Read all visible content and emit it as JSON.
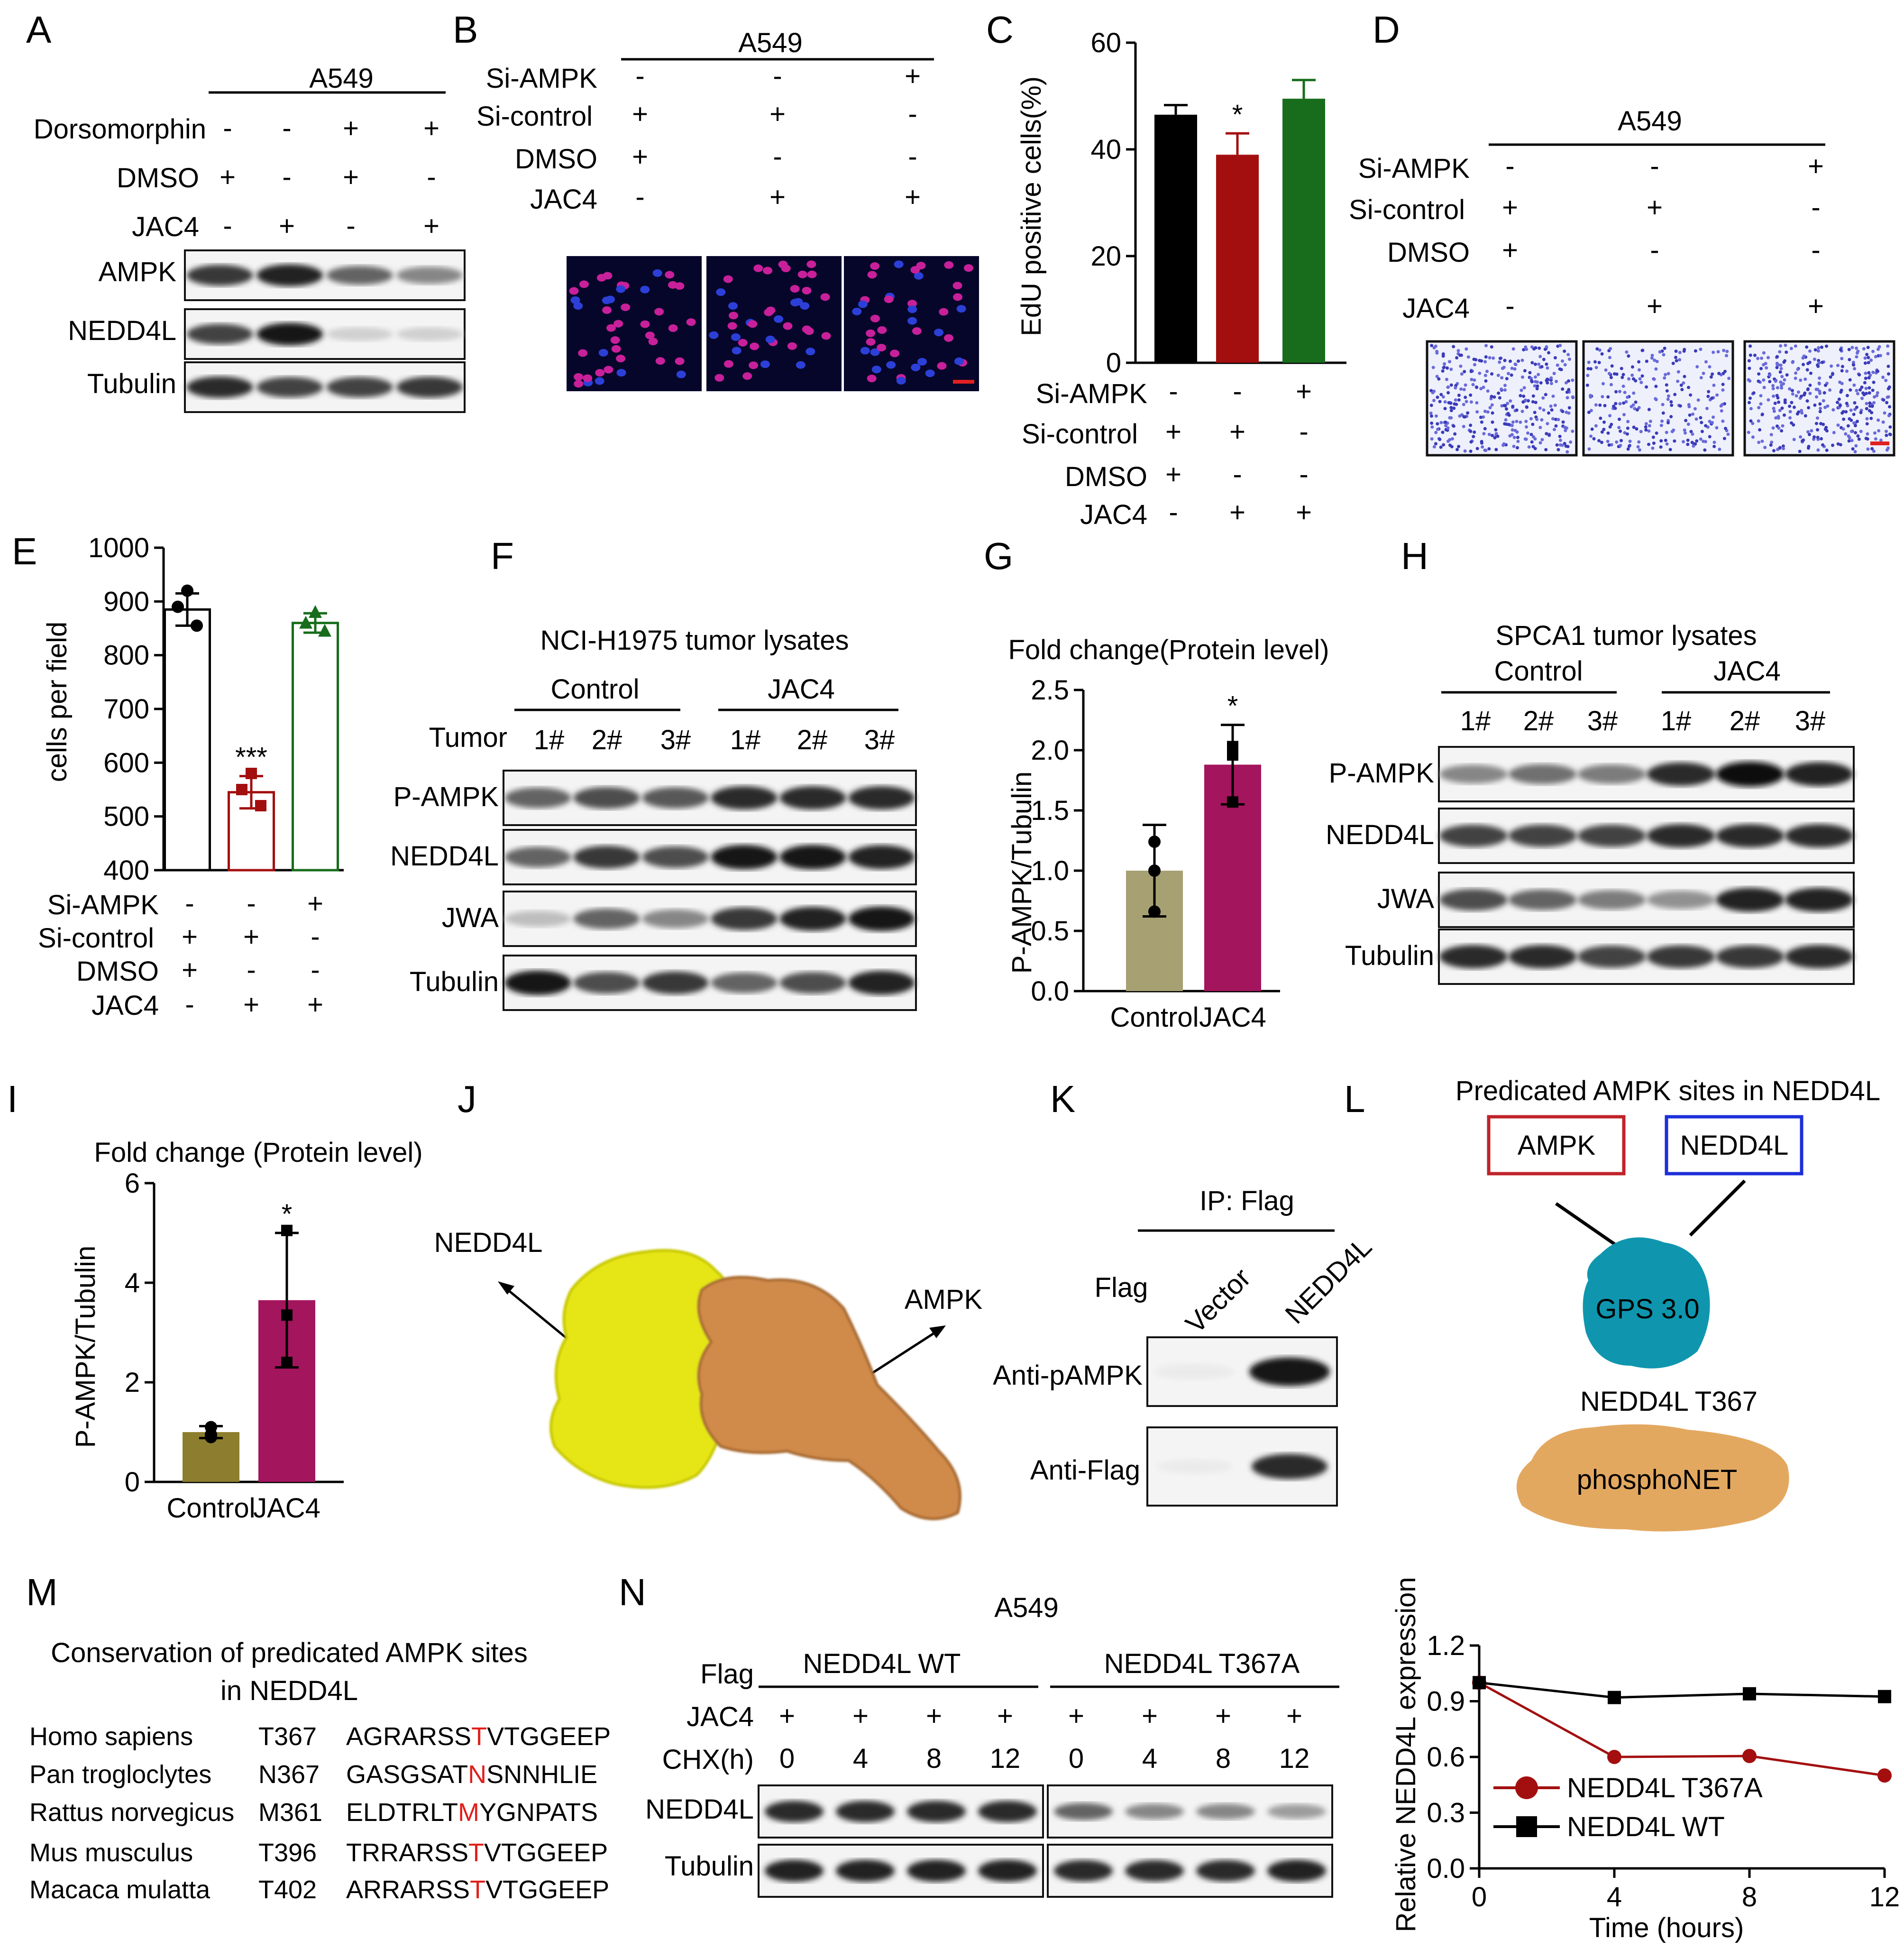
{
  "panel_letters": [
    "A",
    "B",
    "C",
    "D",
    "E",
    "F",
    "G",
    "H",
    "I",
    "J",
    "K",
    "L",
    "M",
    "N"
  ],
  "treat_labels": {
    "dorsomorphin": "Dorsomorphin",
    "dmso": "DMSO",
    "jac4": "JAC4",
    "si_ampk": "Si-AMPK",
    "si_control": "Si-control",
    "tumor": "Tumor",
    "flag": "Flag",
    "chx": "CHX(h)"
  },
  "A": {
    "cell_line": "A549",
    "dorsomorphin": [
      "-",
      "-",
      "+",
      "+"
    ],
    "dmso": [
      "+",
      "-",
      "+",
      "-"
    ],
    "jac4": [
      "-",
      "+",
      "-",
      "+"
    ],
    "blots": [
      "AMPK",
      "NEDD4L",
      "Tubulin"
    ],
    "band_intensity": {
      "AMPK": [
        0.8,
        0.9,
        0.6,
        0.45
      ],
      "NEDD4L": [
        0.75,
        0.95,
        0.12,
        0.12
      ],
      "Tubulin": [
        0.85,
        0.75,
        0.75,
        0.8
      ]
    }
  },
  "B": {
    "cell_line": "A549",
    "si_ampk": [
      "-",
      "-",
      "+"
    ],
    "si_control": [
      "+",
      "+",
      "-"
    ],
    "dmso": [
      "+",
      "-",
      "-"
    ],
    "jac4": [
      "-",
      "+",
      "+"
    ]
  },
  "C": {
    "chart_data": {
      "type": "bar",
      "ylabel": "EdU positive cells(%)",
      "ylim": [
        0,
        60
      ],
      "yticks": [
        0,
        20,
        40,
        60
      ],
      "values": [
        46.5,
        39,
        49.5
      ],
      "errors": [
        1.8,
        4,
        3.5
      ],
      "colors": [
        "#000000",
        "#a30f0f",
        "#176d1c"
      ],
      "significance": [
        "",
        "*",
        ""
      ]
    },
    "si_ampk": [
      "-",
      "-",
      "+"
    ],
    "si_control": [
      "+",
      "+",
      "-"
    ],
    "dmso": [
      "+",
      "-",
      "-"
    ],
    "jac4": [
      "-",
      "+",
      "+"
    ]
  },
  "D": {
    "cell_line": "A549",
    "si_ampk": [
      "-",
      "-",
      "+"
    ],
    "si_control": [
      "+",
      "+",
      "-"
    ],
    "dmso": [
      "+",
      "-",
      "-"
    ],
    "jac4": [
      "-",
      "+",
      "+"
    ]
  },
  "E": {
    "chart_data": {
      "type": "bar",
      "ylabel": "cells per field",
      "ylim": [
        400,
        1000
      ],
      "yticks": [
        400,
        500,
        600,
        700,
        800,
        900,
        1000
      ],
      "values": [
        885,
        545,
        860
      ],
      "errors": [
        30,
        30,
        18
      ],
      "points": [
        [
          920,
          890,
          855
        ],
        [
          580,
          550,
          520
        ],
        [
          880,
          860,
          845
        ]
      ],
      "colors": [
        "#000000",
        "#a30f0f",
        "#176d1c"
      ],
      "significance": [
        "",
        "***",
        ""
      ]
    },
    "si_ampk": [
      "-",
      "-",
      "+"
    ],
    "si_control": [
      "+",
      "+",
      "-"
    ],
    "dmso": [
      "+",
      "-",
      "-"
    ],
    "jac4": [
      "-",
      "+",
      "+"
    ]
  },
  "F": {
    "title": "NCI-H1975 tumor lysates",
    "groups": [
      "Control",
      "JAC4"
    ],
    "tumors": [
      "1#",
      "2#",
      "3#",
      "1#",
      "2#",
      "3#"
    ],
    "blots": [
      "P-AMPK",
      "NEDD4L",
      "JWA",
      "Tubulin"
    ],
    "band_intensity": {
      "P-AMPK": [
        0.6,
        0.7,
        0.65,
        0.85,
        0.85,
        0.85
      ],
      "NEDD4L": [
        0.6,
        0.8,
        0.7,
        0.95,
        0.95,
        0.9
      ],
      "JWA": [
        0.2,
        0.6,
        0.45,
        0.8,
        0.9,
        0.95
      ],
      "Tubulin": [
        0.95,
        0.7,
        0.8,
        0.6,
        0.7,
        0.9
      ]
    }
  },
  "G": {
    "chart_data": {
      "type": "bar",
      "title": "Fold change(Protein level)",
      "ylabel": "P-AMPK/Tubulin",
      "categories": [
        "Control",
        "JAC4"
      ],
      "ylim": [
        0,
        2.5
      ],
      "yticks": [
        "0.0",
        "0.5",
        "1.0",
        "1.5",
        "2.0",
        "2.5"
      ],
      "values": [
        1.0,
        1.88
      ],
      "errors": [
        0.38,
        0.33
      ],
      "points": [
        [
          1.24,
          1.0,
          0.66
        ],
        [
          2.03,
          1.96,
          1.57
        ]
      ],
      "colors": [
        "#a6a072",
        "#a3155d"
      ],
      "significance": [
        "",
        "*"
      ]
    }
  },
  "H": {
    "title": "SPCA1  tumor lysates",
    "groups": [
      "Control",
      "JAC4"
    ],
    "tumors": [
      "1#",
      "2#",
      "3#",
      "1#",
      "2#",
      "3#"
    ],
    "blots": [
      "P-AMPK",
      "NEDD4L",
      "JWA",
      "Tubulin"
    ],
    "band_intensity": {
      "P-AMPK": [
        0.45,
        0.55,
        0.5,
        0.85,
        1.0,
        0.9
      ],
      "NEDD4L": [
        0.75,
        0.75,
        0.75,
        0.85,
        0.85,
        0.85
      ],
      "JWA": [
        0.7,
        0.6,
        0.5,
        0.4,
        0.9,
        0.9
      ],
      "Tubulin": [
        0.85,
        0.85,
        0.75,
        0.8,
        0.8,
        0.85
      ]
    }
  },
  "I": {
    "chart_data": {
      "type": "bar",
      "title": "Fold change (Protein level)",
      "ylabel": "P-AMPK/Tubulin",
      "categories": [
        "Control",
        "JAC4"
      ],
      "ylim": [
        0,
        6
      ],
      "yticks": [
        "0",
        "2",
        "4",
        "6"
      ],
      "values": [
        1.0,
        3.65
      ],
      "errors": [
        0.12,
        1.35
      ],
      "points": [
        [
          1.1,
          0.95,
          0.9
        ],
        [
          5.05,
          3.35,
          2.4
        ]
      ],
      "colors": [
        "#8c7e2e",
        "#a3155d"
      ],
      "significance": [
        "",
        "*"
      ]
    }
  },
  "J": {
    "label_left": "NEDD4L",
    "label_right": "AMPK"
  },
  "K": {
    "title": "IP: Flag",
    "flag": "Flag",
    "lanes": [
      "Vector",
      "NEDD4L"
    ],
    "blots": [
      "Anti-pAMPK",
      "Anti-Flag"
    ]
  },
  "L": {
    "title": "Predicated AMPK sites in NEDD4L",
    "box_left": "AMPK",
    "box_right": "NEDD4L",
    "tool1": "GPS 3.0",
    "site": "NEDD4L T367",
    "tool2": "phosphoNET"
  },
  "M": {
    "title_line1": "Conservation of predicated AMPK sites",
    "title_line2": "in NEDD4L",
    "rows": [
      {
        "species": "Homo sapiens",
        "site": "T367",
        "pre": "AGRARSS",
        "hl": "T",
        "post": "VTGGEEP"
      },
      {
        "species": "Pan trogloclytes",
        "site": "N367",
        "pre": "GASGSAT",
        "hl": "N",
        "post": "SNNHLIE"
      },
      {
        "species": "Rattus norvegicus",
        "site": "M361",
        "pre": "ELDTRLT",
        "hl": "M",
        "post": "YGNPATS"
      },
      {
        "species": "Mus musculus",
        "site": "T396",
        "pre": "TRRARSS",
        "hl": "T",
        "post": "VTGGEEP"
      },
      {
        "species": "Macaca mulatta",
        "site": "T402",
        "pre": "ARRARSS",
        "hl": "T",
        "post": "VTGGEEP"
      }
    ]
  },
  "N": {
    "cell_line": "A549",
    "groups": [
      "NEDD4L WT",
      "NEDD4L T367A"
    ],
    "jac4": [
      "+",
      "+",
      "+",
      "+",
      "+",
      "+",
      "+",
      "+"
    ],
    "chx": [
      "0",
      "4",
      "8",
      "12",
      "0",
      "4",
      "8",
      "12"
    ],
    "blots": [
      "NEDD4L",
      "Tubulin"
    ],
    "band_intensity": {
      "NEDD4L": [
        0.85,
        0.85,
        0.85,
        0.85,
        0.6,
        0.45,
        0.45,
        0.35
      ],
      "Tubulin": [
        0.9,
        0.9,
        0.9,
        0.9,
        0.85,
        0.85,
        0.85,
        0.9
      ]
    }
  },
  "line_chart": {
    "chart_data": {
      "type": "line",
      "xlabel": "Time (hours)",
      "ylabel": "Relative NEDD4L expression",
      "x": [
        0,
        4,
        8,
        12
      ],
      "xlim": [
        0,
        12
      ],
      "ylim": [
        0,
        1.2
      ],
      "yticks": [
        "0.0",
        "0.3",
        "0.6",
        "0.9",
        "1.2"
      ],
      "series": [
        {
          "name": "NEDD4L T367A",
          "values": [
            1.0,
            0.6,
            0.605,
            0.5
          ],
          "color": "#a30f0f",
          "marker": "circle"
        },
        {
          "name": "NEDD4L WT",
          "values": [
            1.0,
            0.92,
            0.94,
            0.925
          ],
          "color": "#000000",
          "marker": "square"
        }
      ],
      "legend": "bottom-left"
    }
  }
}
